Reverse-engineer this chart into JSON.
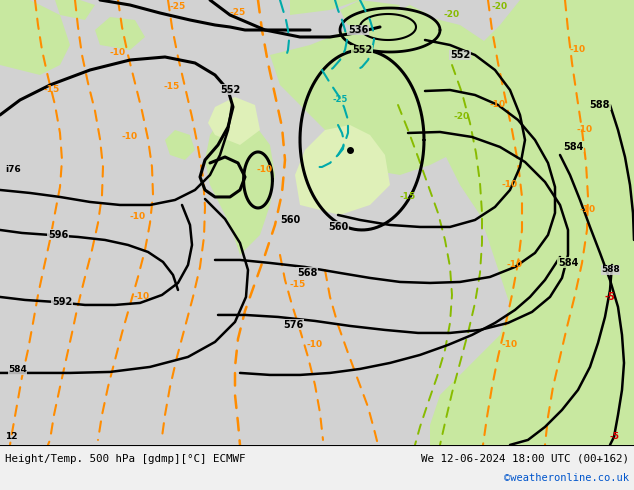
{
  "title_left": "Height/Temp. 500 hPa [gdmp][°C] ECMWF",
  "title_right": "We 12-06-2024 18:00 UTC (00+162)",
  "credit": "©weatheronline.co.uk",
  "bg_gray": "#d2d2d2",
  "bg_green": "#c8e8a0",
  "bg_light_green": "#dff0b8",
  "z500_color": "#000000",
  "temp_orange": "#ff8c00",
  "temp_green": "#88bb00",
  "temp_cyan": "#00aaaa",
  "temp_red": "#dd0000",
  "credit_color": "#0055cc",
  "bottom_bg": "#f0f0f0"
}
